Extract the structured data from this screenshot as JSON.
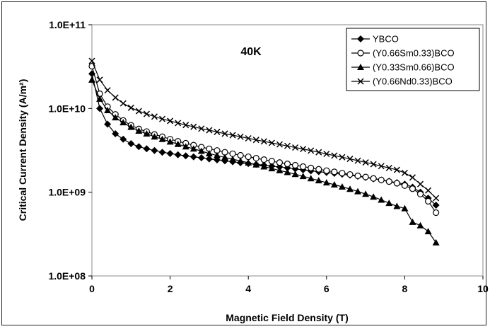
{
  "chart_data": {
    "type": "line",
    "title": "",
    "annotation": "40K",
    "xlabel": "Magnetic Field Density (T)",
    "ylabel": "Critical Current Density (A/m²)",
    "xlim": [
      0,
      10
    ],
    "ylim": [
      100000000,
      100000000000
    ],
    "y_scale": "log",
    "x_ticks": [
      0,
      2,
      4,
      6,
      8,
      10
    ],
    "x_tick_labels": [
      "0",
      "2",
      "4",
      "6",
      "8",
      "10"
    ],
    "y_ticks": [
      100000000,
      1000000000,
      10000000000,
      100000000000
    ],
    "y_tick_labels": [
      "1.0E+08",
      "1.0E+09",
      "1.0E+10",
      "1.0E+11"
    ],
    "grid": false,
    "legend_position": "top-right",
    "series": [
      {
        "name": "YBCO",
        "marker": "diamond-filled",
        "x": [
          0,
          0.2,
          0.4,
          0.6,
          0.8,
          1.0,
          1.2,
          1.4,
          1.6,
          1.8,
          2.0,
          2.2,
          2.4,
          2.6,
          2.8,
          3.0,
          3.2,
          3.4,
          3.6,
          3.8,
          4.0,
          4.2,
          4.4,
          4.6,
          4.8,
          5.0,
          5.2,
          5.4,
          5.6,
          5.8,
          6.0,
          6.2,
          6.4,
          6.6,
          6.8,
          7.0,
          7.2,
          7.4,
          7.6,
          7.8,
          8.0,
          8.2,
          8.4,
          8.6,
          8.8
        ],
        "y": [
          26000000000,
          10000000000,
          6500000000,
          5000000000,
          4300000000,
          3800000000,
          3500000000,
          3300000000,
          3150000000,
          3000000000,
          2900000000,
          2800000000,
          2720000000,
          2650000000,
          2580000000,
          2500000000,
          2430000000,
          2370000000,
          2310000000,
          2250000000,
          2200000000,
          2150000000,
          2100000000,
          2050000000,
          2000000000,
          1950000000,
          1900000000,
          1850000000,
          1800000000,
          1760000000,
          1720000000,
          1680000000,
          1640000000,
          1600000000,
          1550000000,
          1500000000,
          1450000000,
          1400000000,
          1350000000,
          1300000000,
          1250000000,
          1150000000,
          1000000000,
          850000000,
          700000000
        ]
      },
      {
        "name": "(Y0.66Sm0.33)BCO",
        "marker": "circle-open",
        "x": [
          0,
          0.2,
          0.4,
          0.6,
          0.8,
          1.0,
          1.2,
          1.4,
          1.6,
          1.8,
          2.0,
          2.2,
          2.4,
          2.6,
          2.8,
          3.0,
          3.2,
          3.4,
          3.6,
          3.8,
          4.0,
          4.2,
          4.4,
          4.6,
          4.8,
          5.0,
          5.2,
          5.4,
          5.6,
          5.8,
          6.0,
          6.2,
          6.4,
          6.6,
          6.8,
          7.0,
          7.2,
          7.4,
          7.6,
          7.8,
          8.0,
          8.2,
          8.4,
          8.6,
          8.8
        ],
        "y": [
          32000000000,
          15000000000,
          10500000000,
          8500000000,
          7200000000,
          6300000000,
          5700000000,
          5300000000,
          4900000000,
          4600000000,
          4300000000,
          4050000000,
          3850000000,
          3650000000,
          3450000000,
          3300000000,
          3150000000,
          3000000000,
          2880000000,
          2760000000,
          2650000000,
          2550000000,
          2450000000,
          2350000000,
          2260000000,
          2180000000,
          2100000000,
          2020000000,
          1950000000,
          1880000000,
          1810000000,
          1750000000,
          1690000000,
          1630000000,
          1570000000,
          1520000000,
          1460000000,
          1400000000,
          1340000000,
          1280000000,
          1200000000,
          1100000000,
          950000000,
          780000000,
          570000000
        ]
      },
      {
        "name": "(Y0.33Sm0.66)BCO",
        "marker": "triangle-filled",
        "x": [
          0,
          0.2,
          0.4,
          0.6,
          0.8,
          1.0,
          1.2,
          1.4,
          1.6,
          1.8,
          2.0,
          2.2,
          2.4,
          2.6,
          2.8,
          3.0,
          3.2,
          3.4,
          3.6,
          3.8,
          4.0,
          4.2,
          4.4,
          4.6,
          4.8,
          5.0,
          5.2,
          5.4,
          5.6,
          5.8,
          6.0,
          6.2,
          6.4,
          6.6,
          6.8,
          7.0,
          7.2,
          7.4,
          7.6,
          7.8,
          8.0,
          8.2,
          8.4,
          8.6,
          8.8
        ],
        "y": [
          22000000000,
          13000000000,
          9500000000,
          7800000000,
          6800000000,
          6000000000,
          5400000000,
          5000000000,
          4600000000,
          4300000000,
          4000000000,
          3750000000,
          3500000000,
          3300000000,
          3100000000,
          2900000000,
          2750000000,
          2600000000,
          2480000000,
          2360000000,
          2250000000,
          2130000000,
          2020000000,
          1920000000,
          1820000000,
          1730000000,
          1640000000,
          1550000000,
          1460000000,
          1380000000,
          1300000000,
          1230000000,
          1160000000,
          1090000000,
          1020000000,
          950000000,
          880000000,
          810000000,
          740000000,
          680000000,
          640000000,
          440000000,
          400000000,
          340000000,
          250000000
        ]
      },
      {
        "name": "(Y0.66Nd0.33)BCO",
        "marker": "x",
        "x": [
          0,
          0.2,
          0.4,
          0.6,
          0.8,
          1.0,
          1.2,
          1.4,
          1.6,
          1.8,
          2.0,
          2.2,
          2.4,
          2.6,
          2.8,
          3.0,
          3.2,
          3.4,
          3.6,
          3.8,
          4.0,
          4.2,
          4.4,
          4.6,
          4.8,
          5.0,
          5.2,
          5.4,
          5.6,
          5.8,
          6.0,
          6.2,
          6.4,
          6.6,
          6.8,
          7.0,
          7.2,
          7.4,
          7.6,
          7.8,
          8.0,
          8.2,
          8.4,
          8.6,
          8.8
        ],
        "y": [
          37000000000,
          22000000000,
          16500000000,
          13500000000,
          11500000000,
          10200000000,
          9300000000,
          8600000000,
          8000000000,
          7500000000,
          7100000000,
          6700000000,
          6350000000,
          6050000000,
          5750000000,
          5500000000,
          5250000000,
          5000000000,
          4800000000,
          4600000000,
          4400000000,
          4220000000,
          4050000000,
          3880000000,
          3720000000,
          3570000000,
          3420000000,
          3280000000,
          3140000000,
          3000000000,
          2870000000,
          2740000000,
          2620000000,
          2500000000,
          2380000000,
          2270000000,
          2160000000,
          2050000000,
          1950000000,
          1850000000,
          1700000000,
          1500000000,
          1250000000,
          1050000000,
          850000000
        ]
      }
    ]
  }
}
